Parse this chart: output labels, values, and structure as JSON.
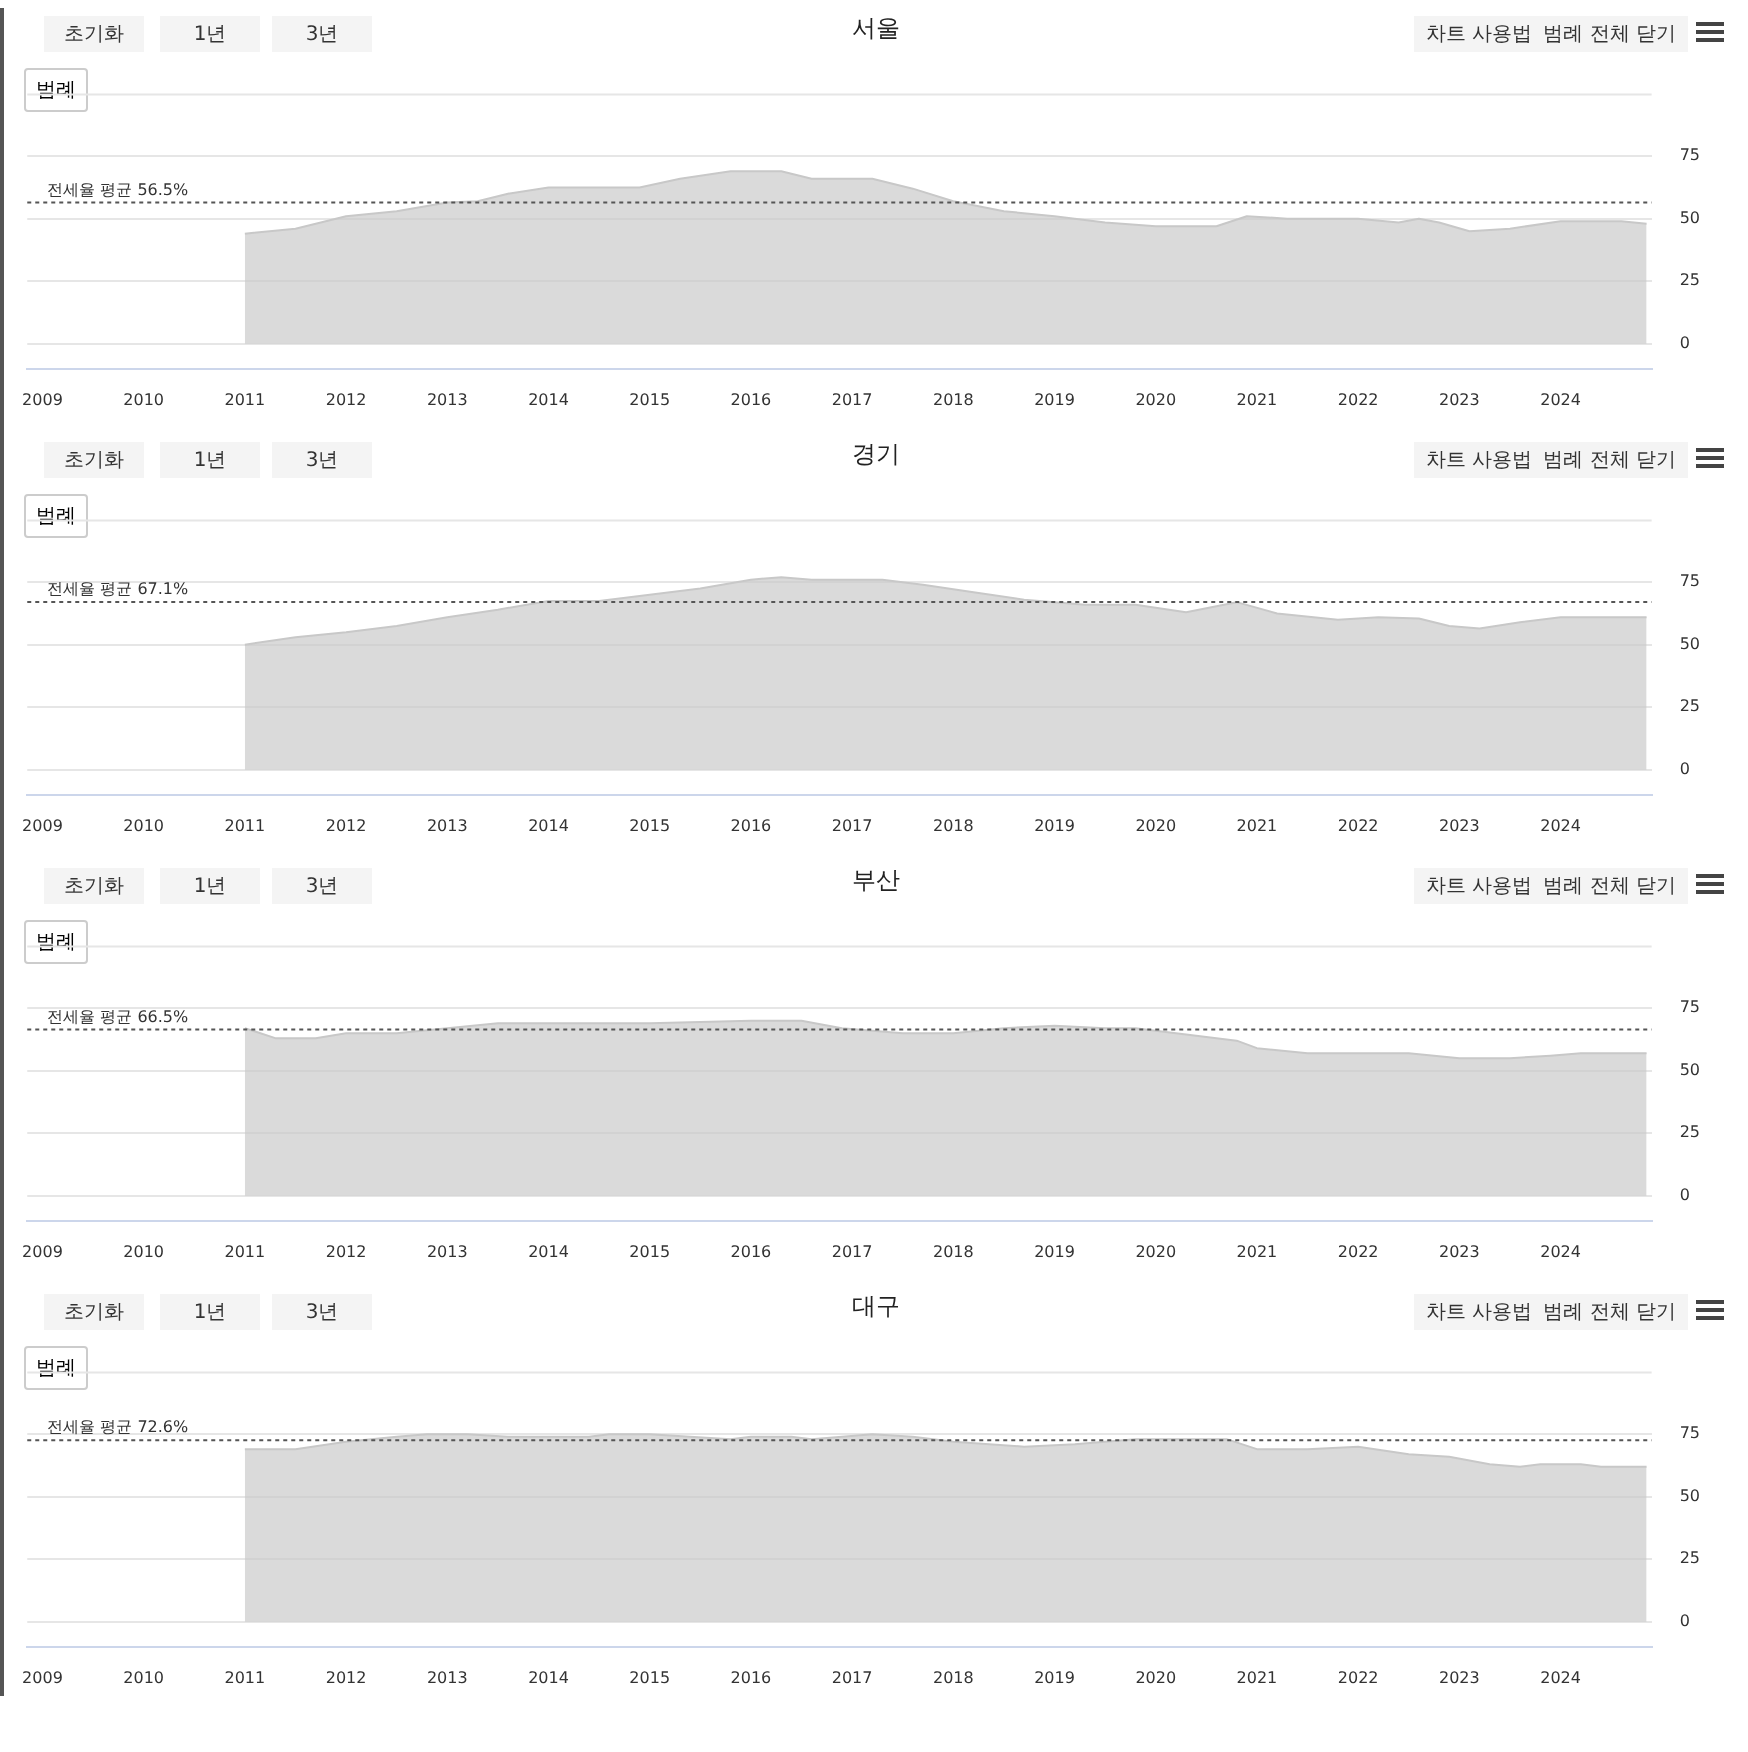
{
  "chart_data": [
    {
      "type": "area",
      "title": "서울",
      "annotations": [
        "초기화",
        "1년",
        "3년",
        "차트 사용법",
        "범례 전체 닫기",
        "범례"
      ],
      "x": [
        2011.0,
        2011.5,
        2012.0,
        2012.5,
        2013.0,
        2013.3,
        2013.6,
        2014.0,
        2014.9,
        2015.3,
        2015.8,
        2016.3,
        2016.6,
        2017.2,
        2017.6,
        2018.0,
        2018.5,
        2019.0,
        2019.5,
        2020.0,
        2020.6,
        2020.9,
        2021.3,
        2022.0,
        2022.4,
        2022.6,
        2022.8,
        2023.1,
        2023.5,
        2024.0,
        2024.6,
        2024.85
      ],
      "series": [
        {
          "color": "#c8c8c8",
          "values": [
            44,
            46,
            51,
            53,
            56.5,
            57,
            60,
            62.5,
            62.5,
            66,
            69,
            69,
            66,
            66,
            62,
            57,
            53,
            51,
            48.5,
            47,
            47,
            51,
            50,
            50,
            48.5,
            50,
            48.5,
            45,
            46,
            49,
            49,
            48
          ]
        }
      ],
      "ref_lines": [
        {
          "axis": "y",
          "value": 56.5,
          "label": "전세율 평균 56.5%",
          "line_style": "dotted",
          "color": "#555555"
        }
      ],
      "xlim": [
        2008.85,
        2024.9
      ],
      "xticks": [
        2009,
        2010,
        2011,
        2012,
        2013,
        2014,
        2015,
        2016,
        2017,
        2018,
        2019,
        2020,
        2021,
        2022,
        2023,
        2024
      ],
      "ylim": [
        -10,
        100
      ],
      "yticks": [
        0,
        25,
        50,
        75
      ],
      "grid": "y",
      "legend": false,
      "marker": "none"
    },
    {
      "type": "area",
      "title": "경기",
      "annotations": [
        "초기화",
        "1년",
        "3년",
        "차트 사용법",
        "범례 전체 닫기",
        "범례"
      ],
      "x": [
        2011.0,
        2011.5,
        2012.0,
        2012.5,
        2013.0,
        2013.5,
        2014.0,
        2014.5,
        2015.0,
        2015.5,
        2016.0,
        2016.3,
        2016.6,
        2017.3,
        2017.7,
        2018.2,
        2018.7,
        2019.3,
        2019.8,
        2020.3,
        2020.8,
        2021.2,
        2021.8,
        2022.2,
        2022.6,
        2022.9,
        2023.2,
        2023.6,
        2024.0,
        2024.85
      ],
      "series": [
        {
          "color": "#c8c8c8",
          "values": [
            50,
            53,
            55,
            57.5,
            61,
            64,
            67.5,
            67.5,
            70,
            72.5,
            76,
            77,
            76,
            76,
            74,
            71,
            68,
            66,
            66,
            63,
            67,
            62.5,
            60,
            61,
            60.5,
            57.5,
            56.5,
            59,
            61,
            61
          ]
        }
      ],
      "ref_lines": [
        {
          "axis": "y",
          "value": 67.1,
          "label": "전세율 평균 67.1%",
          "line_style": "dotted",
          "color": "#555555"
        }
      ],
      "xlim": [
        2008.85,
        2024.9
      ],
      "xticks": [
        2009,
        2010,
        2011,
        2012,
        2013,
        2014,
        2015,
        2016,
        2017,
        2018,
        2019,
        2020,
        2021,
        2022,
        2023,
        2024
      ],
      "ylim": [
        -10,
        100
      ],
      "yticks": [
        0,
        25,
        50,
        75
      ],
      "grid": "y",
      "legend": false,
      "marker": "none"
    },
    {
      "type": "area",
      "title": "부산",
      "annotations": [
        "초기화",
        "1년",
        "3년",
        "차트 사용법",
        "범례 전체 닫기",
        "범례"
      ],
      "x": [
        2011.0,
        2011.3,
        2011.7,
        2012.0,
        2012.5,
        2013.0,
        2013.5,
        2014.0,
        2015.0,
        2016.0,
        2016.5,
        2016.9,
        2017.5,
        2018.0,
        2018.5,
        2019.0,
        2019.5,
        2019.8,
        2020.2,
        2020.8,
        2021.0,
        2021.5,
        2022.5,
        2023.0,
        2023.5,
        2023.9,
        2024.2,
        2024.85
      ],
      "series": [
        {
          "color": "#c8c8c8",
          "values": [
            67,
            63,
            63,
            65,
            65,
            67,
            69,
            69,
            69,
            70,
            70,
            67,
            65,
            65,
            67,
            68,
            67,
            67,
            65,
            62,
            59,
            57,
            57,
            55,
            55,
            56,
            57,
            57
          ]
        }
      ],
      "ref_lines": [
        {
          "axis": "y",
          "value": 66.5,
          "label": "전세율 평균 66.5%",
          "line_style": "dotted",
          "color": "#555555"
        }
      ],
      "xlim": [
        2008.85,
        2024.9
      ],
      "xticks": [
        2009,
        2010,
        2011,
        2012,
        2013,
        2014,
        2015,
        2016,
        2017,
        2018,
        2019,
        2020,
        2021,
        2022,
        2023,
        2024
      ],
      "ylim": [
        -10,
        100
      ],
      "yticks": [
        0,
        25,
        50,
        75
      ],
      "grid": "y",
      "legend": false,
      "marker": "none"
    },
    {
      "type": "area",
      "title": "대구",
      "annotations": [
        "초기화",
        "1년",
        "3년",
        "차트 사용법",
        "범례 전체 닫기",
        "범례"
      ],
      "x": [
        2011.0,
        2011.5,
        2012.0,
        2012.5,
        2012.8,
        2013.2,
        2013.6,
        2014.0,
        2014.4,
        2014.6,
        2015.0,
        2015.4,
        2015.8,
        2016.0,
        2016.4,
        2016.6,
        2017.2,
        2017.6,
        2018.0,
        2018.7,
        2019.2,
        2019.8,
        2020.2,
        2020.7,
        2021.0,
        2021.5,
        2022.0,
        2022.5,
        2022.9,
        2023.3,
        2023.6,
        2023.8,
        2024.2,
        2024.4,
        2024.85
      ],
      "series": [
        {
          "color": "#c8c8c8",
          "values": [
            69,
            69,
            72,
            74,
            75,
            75,
            74,
            74,
            74,
            75,
            75,
            74,
            73,
            74,
            74,
            73,
            75,
            74,
            72,
            70,
            71,
            73,
            73,
            73,
            69,
            69,
            70,
            67,
            66,
            63,
            62,
            63,
            63,
            62,
            62
          ]
        }
      ],
      "ref_lines": [
        {
          "axis": "y",
          "value": 72.6,
          "label": "전세율 평균 72.6%",
          "line_style": "dotted",
          "color": "#555555"
        }
      ],
      "xlim": [
        2008.85,
        2024.9
      ],
      "xticks": [
        2009,
        2010,
        2011,
        2012,
        2013,
        2014,
        2015,
        2016,
        2017,
        2018,
        2019,
        2020,
        2021,
        2022,
        2023,
        2024
      ],
      "ylim": [
        -10,
        100
      ],
      "yticks": [
        0,
        25,
        50,
        75
      ],
      "grid": "y",
      "legend": false,
      "marker": "none"
    }
  ]
}
